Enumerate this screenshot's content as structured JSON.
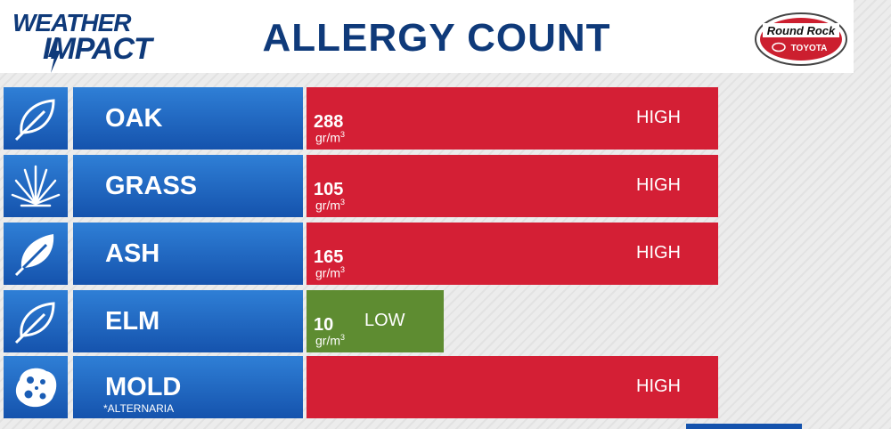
{
  "header": {
    "brand_line1": "WEATHER",
    "brand_line2": "IMPACT",
    "title": "ALLERGY COUNT",
    "sponsor_line1": "Round Rock",
    "sponsor_line2": "TOYOTA"
  },
  "chart_data": {
    "type": "bar",
    "orientation": "horizontal",
    "title": "ALLERGY COUNT",
    "categories": [
      "OAK",
      "GRASS",
      "ASH",
      "ELM",
      "MOLD"
    ],
    "values": [
      288,
      105,
      165,
      10,
      null
    ],
    "unit": "gr/m",
    "levels": [
      "HIGH",
      "HIGH",
      "HIGH",
      "LOW",
      "HIGH"
    ],
    "level_colors": {
      "HIGH": "#d41f35",
      "LOW": "#5e8c31"
    },
    "bar_fill": [
      1.0,
      1.0,
      1.0,
      0.33,
      1.0
    ]
  },
  "rows": [
    {
      "name": "OAK",
      "sub": "",
      "value": "288",
      "unit": "gr/m",
      "unit_exp": "3",
      "level": "HIGH",
      "icon": "oak-leaf-icon"
    },
    {
      "name": "GRASS",
      "sub": "",
      "value": "105",
      "unit": "gr/m",
      "unit_exp": "3",
      "level": "HIGH",
      "icon": "grass-icon"
    },
    {
      "name": "ASH",
      "sub": "",
      "value": "165",
      "unit": "gr/m",
      "unit_exp": "3",
      "level": "HIGH",
      "icon": "ash-leaf-icon"
    },
    {
      "name": "ELM",
      "sub": "",
      "value": "10",
      "unit": "gr/m",
      "unit_exp": "3",
      "level": "LOW",
      "icon": "elm-leaf-icon"
    },
    {
      "name": "MOLD",
      "sub": "*ALTERNARIA",
      "value": "",
      "unit": "",
      "unit_exp": "",
      "level": "HIGH",
      "icon": "mold-spore-icon"
    }
  ],
  "colors": {
    "navy": "#0f3a7a",
    "blue": "#1553ad",
    "high": "#d41f35",
    "low": "#5e8c31"
  }
}
